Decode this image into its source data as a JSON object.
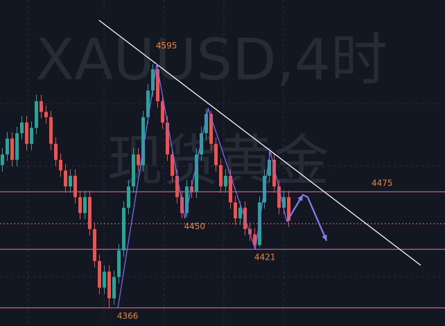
{
  "chart_data": {
    "type": "candlestick",
    "title": "XAUUSD,4时",
    "subtitle": "现货黄金",
    "xlim": [
      -0.5,
      91.2
    ],
    "ylim": [
      4349,
      4655
    ],
    "up_color": "#26a69a",
    "down_color": "#ef5350",
    "series": [
      {
        "open": [
          4500,
          4510,
          4525,
          4505,
          4530,
          4540,
          4520,
          4535,
          4560,
          4550,
          4545,
          4520,
          4505,
          4495,
          4480,
          4490,
          4470,
          4455,
          4470,
          4440,
          4410,
          4385,
          4400,
          4375,
          4395,
          4420,
          4460,
          4480,
          4510,
          4500,
          4545,
          4570,
          4590,
          4560,
          4540,
          4510,
          4490,
          4470,
          4455,
          4480,
          4475,
          4510,
          4530,
          4548,
          4520,
          4500,
          4480,
          4490,
          4465,
          4450,
          4460,
          4440,
          4435,
          4425,
          4465,
          4490,
          4505,
          4480,
          4460,
          4470
        ],
        "high": [
          4516,
          4531,
          4531,
          4536,
          4546,
          4546,
          4541,
          4566,
          4566,
          4556,
          4551,
          4526,
          4511,
          4501,
          4496,
          4496,
          4476,
          4476,
          4476,
          4446,
          4416,
          4406,
          4406,
          4401,
          4426,
          4466,
          4486,
          4516,
          4516,
          4551,
          4576,
          4595,
          4594,
          4566,
          4546,
          4516,
          4496,
          4476,
          4486,
          4486,
          4516,
          4536,
          4553,
          4551,
          4526,
          4506,
          4496,
          4496,
          4471,
          4466,
          4466,
          4446,
          4441,
          4471,
          4496,
          4513,
          4511,
          4486,
          4476,
          4476
        ],
        "low": [
          4494,
          4504,
          4499,
          4499,
          4524,
          4514,
          4514,
          4529,
          4544,
          4539,
          4514,
          4499,
          4489,
          4474,
          4474,
          4464,
          4449,
          4449,
          4434,
          4404,
          4379,
          4379,
          4366,
          4369,
          4389,
          4414,
          4454,
          4474,
          4494,
          4494,
          4539,
          4564,
          4554,
          4534,
          4504,
          4484,
          4464,
          4450,
          4451,
          4469,
          4469,
          4504,
          4524,
          4514,
          4494,
          4474,
          4474,
          4459,
          4444,
          4444,
          4434,
          4429,
          4421,
          4423,
          4459,
          4484,
          4474,
          4454,
          4454,
          4442
        ],
        "close": [
          4510,
          4525,
          4505,
          4530,
          4540,
          4520,
          4535,
          4560,
          4550,
          4545,
          4520,
          4505,
          4495,
          4480,
          4490,
          4470,
          4455,
          4470,
          4440,
          4410,
          4385,
          4400,
          4375,
          4395,
          4420,
          4460,
          4480,
          4510,
          4500,
          4545,
          4570,
          4590,
          4560,
          4540,
          4510,
          4490,
          4470,
          4455,
          4480,
          4475,
          4510,
          4530,
          4548,
          4520,
          4500,
          4480,
          4490,
          4465,
          4450,
          4460,
          4440,
          4435,
          4425,
          4465,
          4490,
          4505,
          4480,
          4460,
          4470,
          4448
        ]
      }
    ],
    "hlines": [
      {
        "value": 4475,
        "color": "#e26a9a",
        "style": "solid",
        "labeled": true
      },
      {
        "value": 4421,
        "color": "#e26a9a",
        "style": "solid",
        "labeled": false
      },
      {
        "value": 4366,
        "color": "#e26a9a",
        "style": "solid",
        "labeled": false
      },
      {
        "value": 4445,
        "color": "#c2607e",
        "style": "dotted",
        "labeled": false
      }
    ],
    "trendline": {
      "x": [
        19.9,
        86.2
      ],
      "values": [
        4636,
        4406
      ],
      "color": "#ffffff"
    },
    "zigzag": {
      "x": [
        23.8,
        31.8,
        37.6,
        42.4,
        52.1,
        55.2,
        58.6
      ],
      "values": [
        4366,
        4595,
        4450,
        4553,
        4421,
        4513,
        4447
      ],
      "color": "#7b68ee"
    },
    "projection": {
      "x": [
        58.6,
        61.9,
        62.9,
        66.8
      ],
      "values": [
        4447,
        4472,
        4470,
        4429
      ],
      "color": "#8a7cf5"
    },
    "annotations": [
      {
        "x": 31.8,
        "value": 4595,
        "position": "above"
      },
      {
        "x": 37.6,
        "value": 4450,
        "position": "below"
      },
      {
        "x": 52.1,
        "value": 4421,
        "position": "below"
      },
      {
        "x": 23.8,
        "value": 4366,
        "position": "below"
      }
    ],
    "label_color": "#f0833a"
  }
}
